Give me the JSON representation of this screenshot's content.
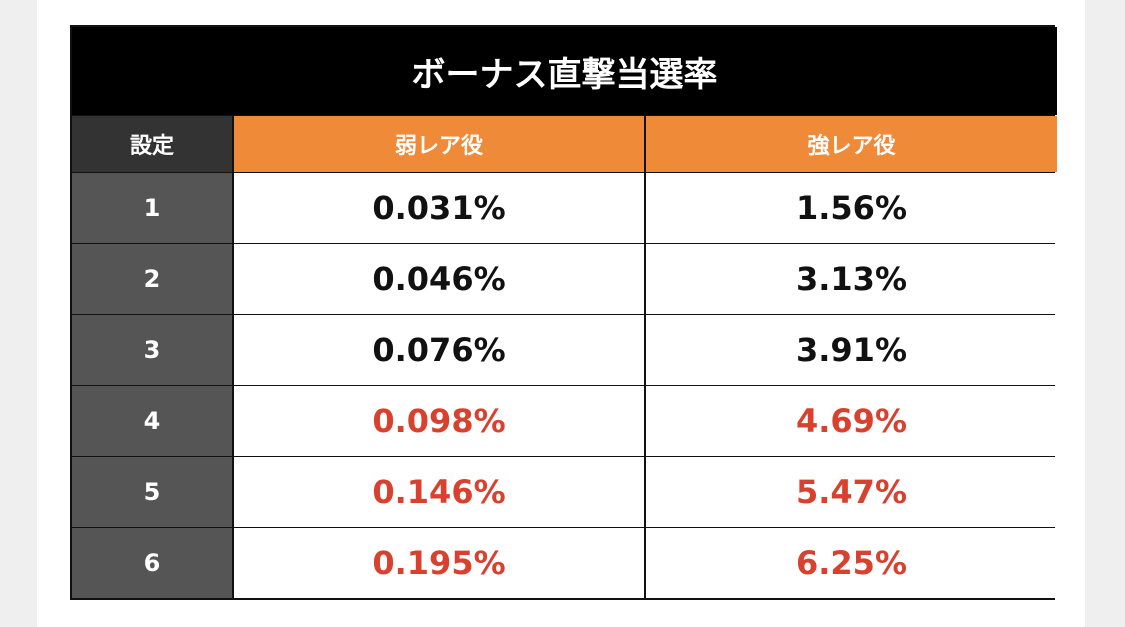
{
  "title": "ボーナス直撃当選率",
  "table": {
    "header": [
      "設定",
      "弱レア役",
      "強レア役"
    ],
    "rows": [
      {
        "cells": [
          "1",
          "0.031%",
          "1.56%"
        ],
        "color": "#111111"
      },
      {
        "cells": [
          "2",
          "0.046%",
          "3.13%"
        ],
        "color": "#111111"
      },
      {
        "cells": [
          "3",
          "0.076%",
          "3.91%"
        ],
        "color": "#111111"
      },
      {
        "cells": [
          "4",
          "0.098%",
          "4.69%"
        ],
        "color": "#d9412f"
      },
      {
        "cells": [
          "5",
          "0.146%",
          "5.47%"
        ],
        "color": "#d9412f"
      },
      {
        "cells": [
          "6",
          "0.195%",
          "6.25%"
        ],
        "color": "#d9412f"
      }
    ]
  }
}
